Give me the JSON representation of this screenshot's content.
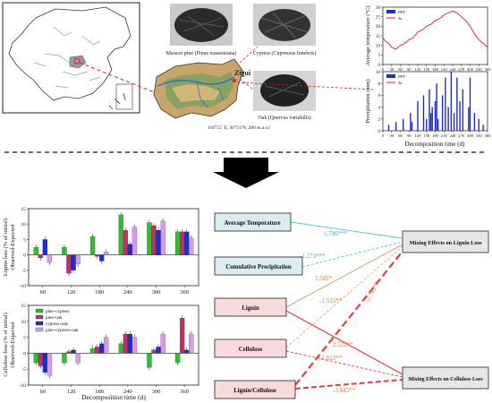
{
  "top": {
    "samples": [
      {
        "label": "Masson pine (Pinus massoniana)"
      },
      {
        "label": "Cypress (Cupressus funebris)"
      },
      {
        "label": "Oak (Quercus variabilis)"
      }
    ],
    "site_name": "Zigui",
    "coordinates": "110°55′ E, 30°51′N, 280 m.a.s.l",
    "temp_chart": {
      "ylabel": "Average temperature (°C)",
      "legend": [
        "PPT",
        "Ta"
      ],
      "yticks": [
        "0",
        "5",
        "10",
        "15",
        "20",
        "25",
        "30"
      ]
    },
    "precip_chart": {
      "ylabel": "Precipitation (mm)",
      "legend": [
        "PPT",
        "Ta"
      ],
      "yticks": [
        "0",
        "2",
        "4",
        "6",
        "8",
        "10"
      ]
    },
    "xticks": [
      "0",
      "30",
      "60",
      "90",
      "120",
      "150",
      "180",
      "210",
      "240",
      "270",
      "300",
      "330",
      "360"
    ],
    "xlabel": "Decomposition time (d)"
  },
  "bar_panel": {
    "legend": [
      "pine+cypress",
      "pine+oak",
      "cypress+oak",
      "pine+cypress+oak"
    ],
    "colors": [
      "#33bb33",
      "#bb3366",
      "#1f2ccc",
      "#d89ae8"
    ],
    "categories": [
      "60",
      "120",
      "180",
      "240",
      "300",
      "360"
    ],
    "xlabel": "Decomposition time (d)",
    "lignin_ylabel": "Lignin loss (% of initial)",
    "lignin_ylabel2": "Observed-Expected",
    "cellulose_ylabel": "Cellulose loss (% of initial)",
    "cellulose_ylabel2": "Observed-Expected",
    "lignin_yticks": [
      "-10",
      "-5",
      "0",
      "5",
      "10",
      "15"
    ],
    "cellulose_yticks": [
      "-10",
      "-5",
      "0",
      "5",
      "10",
      "15"
    ]
  },
  "chart_data": [
    {
      "type": "line",
      "ylabel": "Average temperature (°C)",
      "xlabel": "Decomposition time (d)",
      "xlim": [
        0,
        360
      ],
      "ylim": [
        0,
        30
      ],
      "series": [
        {
          "name": "Ta",
          "x": [
            0,
            10,
            20,
            30,
            45,
            60,
            75,
            90,
            105,
            120,
            135,
            150,
            165,
            180,
            195,
            210,
            225,
            240,
            255,
            270,
            285,
            300,
            315,
            330,
            345,
            360
          ],
          "values": [
            14,
            12,
            11,
            9,
            8,
            10,
            11,
            13,
            14,
            17,
            18,
            20,
            21,
            23,
            24,
            26,
            27,
            28,
            27,
            25,
            23,
            20,
            16,
            13,
            11,
            9
          ]
        }
      ]
    },
    {
      "type": "bar",
      "ylabel": "Precipitation (mm)",
      "xlabel": "Decomposition time (d)",
      "xlim": [
        0,
        360
      ],
      "ylim": [
        0,
        10
      ],
      "series": [
        {
          "name": "PPT",
          "x": [
            20,
            45,
            70,
            95,
            100,
            120,
            140,
            150,
            160,
            165,
            170,
            180,
            185,
            190,
            205,
            215,
            225,
            235,
            245,
            255,
            265,
            275,
            295,
            300,
            315,
            330,
            345
          ],
          "values": [
            1,
            1.5,
            2,
            3,
            1.5,
            5,
            6,
            2,
            7,
            3,
            4,
            5,
            8,
            2,
            6,
            9,
            4,
            10,
            3,
            9,
            5,
            7,
            4,
            9,
            3,
            2,
            1
          ]
        }
      ]
    },
    {
      "type": "bar",
      "ylabel": "Lignin loss (% of initial)",
      "xlabel": "Decomposition time (d)",
      "categories": [
        "60",
        "120",
        "180",
        "240",
        "300",
        "360"
      ],
      "ylim": [
        -10,
        15
      ],
      "series": [
        {
          "name": "pine+cypress",
          "values": [
            2.5,
            2.5,
            6,
            13,
            10.5,
            7.5
          ]
        },
        {
          "name": "pine+oak",
          "values": [
            -1,
            -6,
            -0.5,
            8,
            9.5,
            7.5
          ]
        },
        {
          "name": "cypress+oak",
          "values": [
            5,
            -5,
            -2,
            3.5,
            8,
            7.5
          ]
        },
        {
          "name": "pine+cypress+oak",
          "values": [
            -2.5,
            -3,
            1,
            9,
            11,
            5.5
          ]
        }
      ]
    },
    {
      "type": "bar",
      "ylabel": "Cellulose loss (% of initial)",
      "xlabel": "Decomposition time (d)",
      "categories": [
        "60",
        "120",
        "180",
        "240",
        "300",
        "360"
      ],
      "ylim": [
        -10,
        15
      ],
      "series": [
        {
          "name": "pine+cypress",
          "values": [
            -3,
            -3,
            1.5,
            3,
            -4.5,
            -3
          ]
        },
        {
          "name": "pine+oak",
          "values": [
            -4,
            0.5,
            2,
            6,
            1,
            11
          ]
        },
        {
          "name": "cypress+oak",
          "values": [
            -6,
            1,
            3,
            6,
            2,
            1
          ]
        },
        {
          "name": "pine+cypress+oak",
          "values": [
            -7,
            -3,
            5,
            5,
            6,
            6
          ]
        }
      ]
    }
  ],
  "path_diagram": {
    "nodes": {
      "avg_temp": "Average Temperature",
      "cum_precip": "Cumulative Precipitation",
      "lignin": "Lignin",
      "cellulose": "Cellulose",
      "lignin_cellulose": "Lignin/Cellulose",
      "mix_lignin": "Mixing Effects on Lignin Loss",
      "mix_cellulose": "Mixing Effects on Cellulose Loss"
    },
    "coefficients": {
      "temp_lignin": "1.796***",
      "precip_lignin": "-1.273***",
      "lignin_lignin": "1.582*",
      "cellulose_lignin": "-1.533**",
      "lc_lignin": "-2.745**",
      "lignin_cellulose": "2.522**",
      "cellulose_cellulose": "-1.822**",
      "lc_cellulose": "-3.845**"
    }
  }
}
